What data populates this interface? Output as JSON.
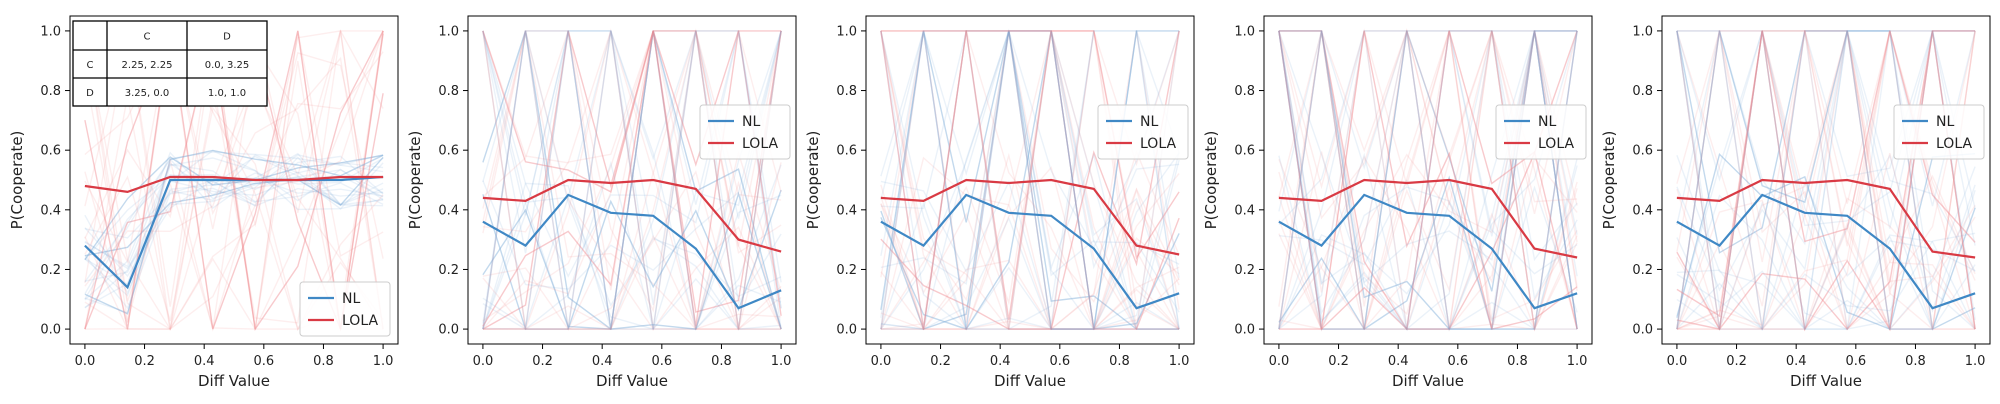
{
  "colors": {
    "nl": "#3f88c5",
    "lola": "#d93a44",
    "bg_nl": "#7aaad8",
    "bg_lola": "#f08a90"
  },
  "payoff_table": {
    "header": [
      "",
      "C",
      "D"
    ],
    "rows": [
      [
        "C",
        "2.25, 2.25",
        "0.0, 3.25"
      ],
      [
        "D",
        "3.25, 0.0",
        "1.0, 1.0"
      ]
    ]
  },
  "chart_data": [
    {
      "type": "line",
      "xlabel": "Diff Value",
      "ylabel": "P(Cooperate)",
      "xlim": [
        -0.05,
        1.05
      ],
      "ylim": [
        -0.05,
        1.05
      ],
      "xticks": [
        "0.0",
        "0.2",
        "0.4",
        "0.6",
        "0.8",
        "1.0"
      ],
      "yticks": [
        "0.0",
        "0.2",
        "0.4",
        "0.6",
        "0.8",
        "1.0"
      ],
      "legend_position": "lower-right",
      "x": [
        0.0,
        0.143,
        0.286,
        0.429,
        0.571,
        0.714,
        0.857,
        1.0
      ],
      "series": [
        {
          "name": "NL",
          "values": [
            0.28,
            0.14,
            0.5,
            0.5,
            0.5,
            0.5,
            0.5,
            0.51
          ]
        },
        {
          "name": "LOLA",
          "values": [
            0.48,
            0.46,
            0.51,
            0.51,
            0.5,
            0.5,
            0.51,
            0.51
          ]
        }
      ]
    },
    {
      "type": "line",
      "xlabel": "Diff Value",
      "ylabel": "P(Cooperate)",
      "xlim": [
        -0.05,
        1.05
      ],
      "ylim": [
        -0.05,
        1.05
      ],
      "xticks": [
        "0.0",
        "0.2",
        "0.4",
        "0.6",
        "0.8",
        "1.0"
      ],
      "yticks": [
        "0.0",
        "0.2",
        "0.4",
        "0.6",
        "0.8",
        "1.0"
      ],
      "legend_position": "center-right",
      "x": [
        0.0,
        0.143,
        0.286,
        0.429,
        0.571,
        0.714,
        0.857,
        1.0
      ],
      "series": [
        {
          "name": "NL",
          "values": [
            0.36,
            0.28,
            0.45,
            0.39,
            0.38,
            0.27,
            0.07,
            0.13
          ]
        },
        {
          "name": "LOLA",
          "values": [
            0.44,
            0.43,
            0.5,
            0.49,
            0.5,
            0.47,
            0.3,
            0.26
          ]
        }
      ]
    },
    {
      "type": "line",
      "xlabel": "Diff Value",
      "ylabel": "P(Cooperate)",
      "xlim": [
        -0.05,
        1.05
      ],
      "ylim": [
        -0.05,
        1.05
      ],
      "xticks": [
        "0.0",
        "0.2",
        "0.4",
        "0.6",
        "0.8",
        "1.0"
      ],
      "yticks": [
        "0.0",
        "0.2",
        "0.4",
        "0.6",
        "0.8",
        "1.0"
      ],
      "legend_position": "center-right",
      "x": [
        0.0,
        0.143,
        0.286,
        0.429,
        0.571,
        0.714,
        0.857,
        1.0
      ],
      "series": [
        {
          "name": "NL",
          "values": [
            0.36,
            0.28,
            0.45,
            0.39,
            0.38,
            0.27,
            0.07,
            0.12
          ]
        },
        {
          "name": "LOLA",
          "values": [
            0.44,
            0.43,
            0.5,
            0.49,
            0.5,
            0.47,
            0.28,
            0.25
          ]
        }
      ]
    },
    {
      "type": "line",
      "xlabel": "Diff Value",
      "ylabel": "P(Cooperate)",
      "xlim": [
        -0.05,
        1.05
      ],
      "ylim": [
        -0.05,
        1.05
      ],
      "xticks": [
        "0.0",
        "0.2",
        "0.4",
        "0.6",
        "0.8",
        "1.0"
      ],
      "yticks": [
        "0.0",
        "0.2",
        "0.4",
        "0.6",
        "0.8",
        "1.0"
      ],
      "legend_position": "center-right",
      "x": [
        0.0,
        0.143,
        0.286,
        0.429,
        0.571,
        0.714,
        0.857,
        1.0
      ],
      "series": [
        {
          "name": "NL",
          "values": [
            0.36,
            0.28,
            0.45,
            0.39,
            0.38,
            0.27,
            0.07,
            0.12
          ]
        },
        {
          "name": "LOLA",
          "values": [
            0.44,
            0.43,
            0.5,
            0.49,
            0.5,
            0.47,
            0.27,
            0.24
          ]
        }
      ]
    },
    {
      "type": "line",
      "xlabel": "Diff Value",
      "ylabel": "P(Cooperate)",
      "xlim": [
        -0.05,
        1.05
      ],
      "ylim": [
        -0.05,
        1.05
      ],
      "xticks": [
        "0.0",
        "0.2",
        "0.4",
        "0.6",
        "0.8",
        "1.0"
      ],
      "yticks": [
        "0.0",
        "0.2",
        "0.4",
        "0.6",
        "0.8",
        "1.0"
      ],
      "legend_position": "center-right",
      "x": [
        0.0,
        0.143,
        0.286,
        0.429,
        0.571,
        0.714,
        0.857,
        1.0
      ],
      "series": [
        {
          "name": "NL",
          "values": [
            0.36,
            0.28,
            0.45,
            0.39,
            0.38,
            0.27,
            0.07,
            0.12
          ]
        },
        {
          "name": "LOLA",
          "values": [
            0.44,
            0.43,
            0.5,
            0.49,
            0.5,
            0.47,
            0.26,
            0.24
          ]
        }
      ]
    }
  ]
}
